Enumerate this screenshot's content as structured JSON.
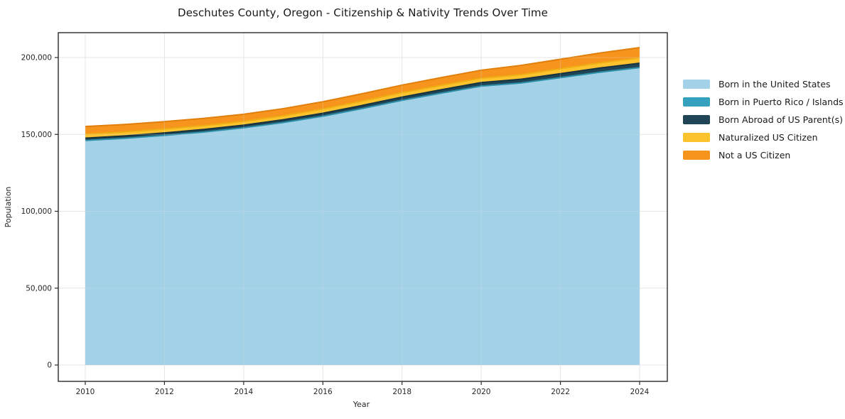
{
  "title": "Deschutes County, Oregon - Citizenship & Nativity Trends Over Time",
  "chart_data": {
    "type": "area",
    "stacked": true,
    "title": "Deschutes County, Oregon - Citizenship & Nativity Trends Over Time",
    "xlabel": "Year",
    "ylabel": "Population",
    "legend_position": "right",
    "grid": true,
    "x": [
      2010,
      2011,
      2012,
      2013,
      2014,
      2015,
      2016,
      2017,
      2018,
      2019,
      2020,
      2021,
      2022,
      2023,
      2024
    ],
    "series": [
      {
        "key": "born-in-us",
        "name": "Born in the United States",
        "color": "#A2D1E8",
        "edge": null,
        "values": [
          145800,
          147200,
          149100,
          151300,
          154000,
          157400,
          161500,
          166500,
          171800,
          176500,
          181000,
          183000,
          186500,
          190000,
          193000
        ]
      },
      {
        "key": "born-puerto-rico-islands",
        "name": "Born in Puerto Rico / Islands",
        "color": "#35A1BE",
        "edge": "#2D8EA8",
        "values": [
          250,
          260,
          270,
          280,
          300,
          320,
          340,
          360,
          380,
          400,
          420,
          440,
          460,
          480,
          500
        ]
      },
      {
        "key": "born-abroad-us-parents",
        "name": "Born Abroad of US Parent(s)",
        "color": "#1F4557",
        "edge": "#16333F",
        "values": [
          1500,
          1550,
          1600,
          1650,
          1700,
          1800,
          1900,
          2000,
          2100,
          2200,
          2300,
          2400,
          2550,
          2700,
          2800
        ]
      },
      {
        "key": "naturalized-citizen",
        "name": "Naturalized US Citizen",
        "color": "#FCC32E",
        "edge": "#EFAD14",
        "values": [
          2600,
          2580,
          2550,
          2520,
          2500,
          2600,
          2800,
          2850,
          2900,
          2900,
          2850,
          3000,
          3200,
          3350,
          3500
        ]
      },
      {
        "key": "not-us-citizen",
        "name": "Not a US Citizen",
        "color": "#F7941E",
        "edge": "#E17F0C",
        "values": [
          5000,
          4900,
          4800,
          4700,
          4600,
          4650,
          4700,
          4800,
          4900,
          5000,
          5200,
          6000,
          6200,
          6400,
          6650
        ]
      }
    ],
    "x_ticks": [
      2010,
      2012,
      2014,
      2016,
      2018,
      2020,
      2022,
      2024
    ],
    "y_ticks": [
      0,
      50000,
      100000,
      150000,
      200000
    ],
    "y_tick_labels": [
      "0",
      "50,000",
      "100,000",
      "150,000",
      "200,000"
    ],
    "ylim": [
      0,
      216000
    ],
    "xlim": [
      2010,
      2024
    ]
  }
}
